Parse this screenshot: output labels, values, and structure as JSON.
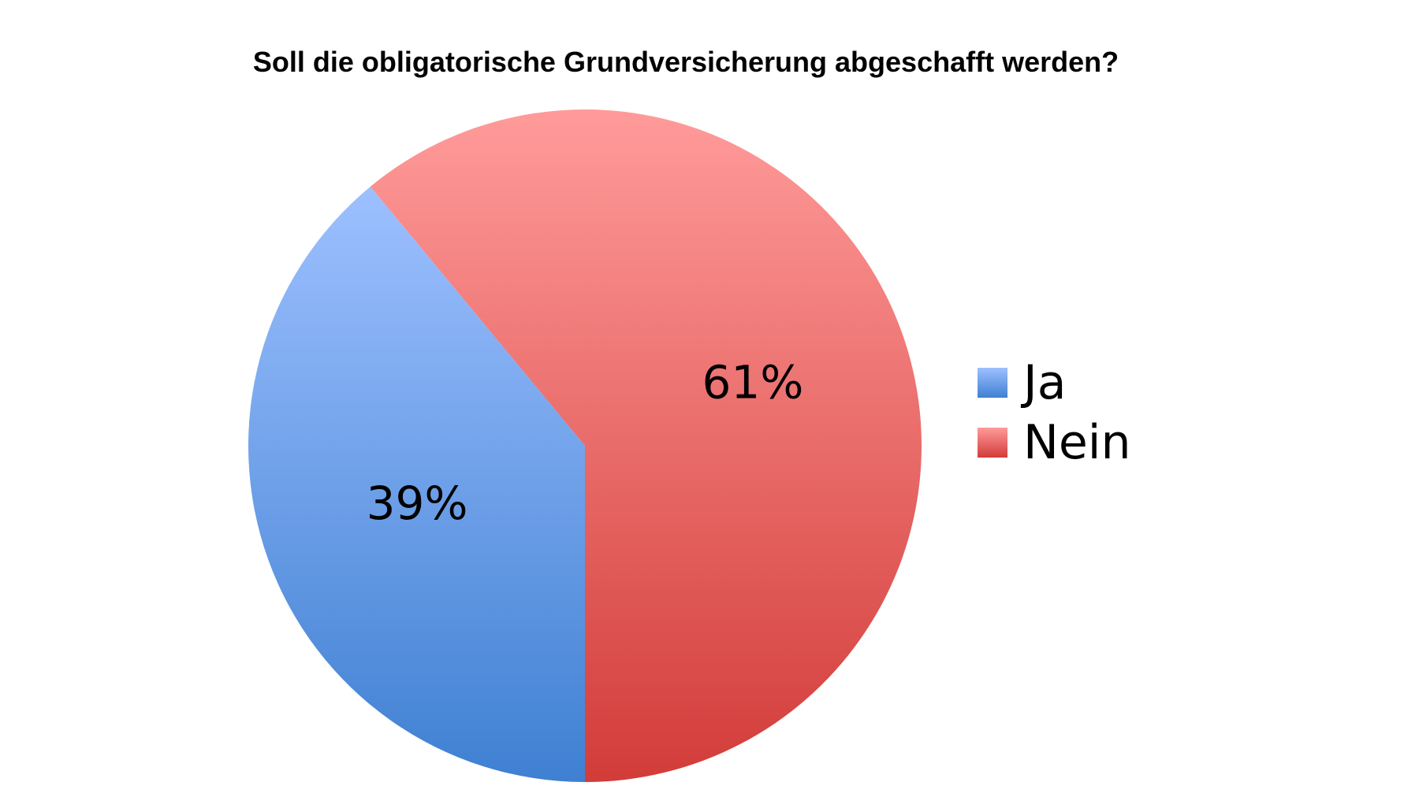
{
  "chart_data": {
    "type": "pie",
    "title": "Soll die obligatorische Grundversicherung abgeschafft werden?",
    "slices": [
      {
        "name": "Ja",
        "value": 39,
        "label": "39%",
        "color_top": "#9dc0ff",
        "color_bottom": "#3f80d2"
      },
      {
        "name": "Nein",
        "value": 61,
        "label": "61%",
        "color_top": "#ff9b9a",
        "color_bottom": "#d23c39"
      }
    ],
    "legend_position": "right",
    "legend": [
      {
        "label": "Ja",
        "color": "#5b8fdc"
      },
      {
        "label": "Nein",
        "color": "#d84a47"
      }
    ]
  }
}
